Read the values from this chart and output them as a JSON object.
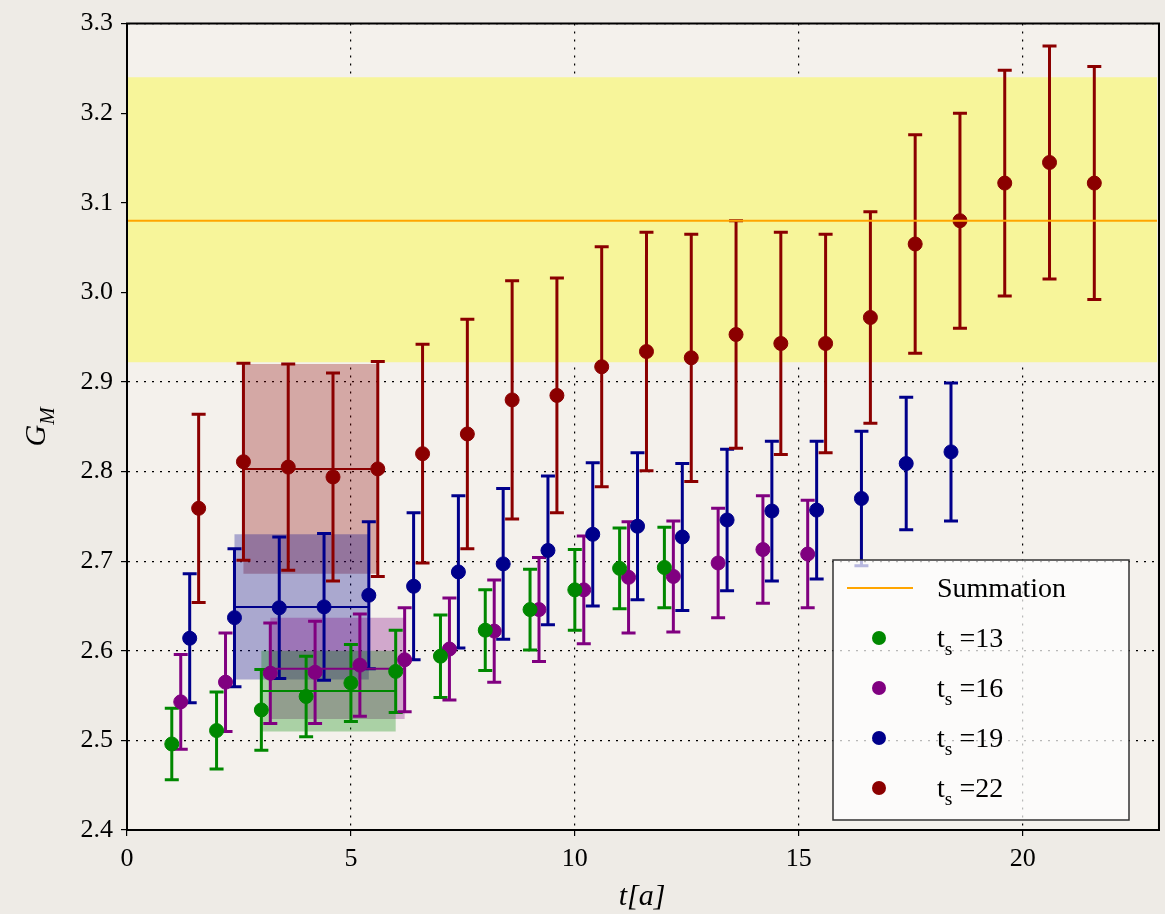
{
  "chart_data": {
    "type": "scatter",
    "xlabel": "t[a]",
    "ylabel": "G$_{M}$",
    "xlim": [
      0,
      23
    ],
    "xticks": [
      0,
      5,
      10,
      15,
      20
    ],
    "ylim": [
      2.4,
      3.3
    ],
    "yticks": [
      {
        "value": 2.4,
        "label": "2.4"
      },
      {
        "value": 2.5,
        "label": "2.5"
      },
      {
        "value": 2.6,
        "label": "2.6"
      },
      {
        "value": 2.7,
        "label": "2.7"
      },
      {
        "value": 2.8,
        "label": "2.8"
      },
      {
        "value": 2.9,
        "label": "2.9"
      },
      {
        "value": 3,
        "label": "3.0"
      },
      {
        "value": 3.1,
        "label": "3.1"
      },
      {
        "value": 3.2,
        "label": "3.2"
      },
      {
        "value": 3.3,
        "label": "3.3"
      }
    ],
    "grid": true,
    "legend": "bottom right",
    "marker": "circle",
    "bands": [
      {
        "axis": "y",
        "from": 2.922,
        "to": 3.24,
        "color": "#f7f59a"
      }
    ],
    "series": [
      {
        "type": "line",
        "name": "Summation",
        "color": "#ffa500",
        "marker": "none",
        "x": [
          0,
          23
        ],
        "values": [
          3.08,
          3.08
        ]
      },
      {
        "name": "t$_{s}$ =13",
        "color": "#008800",
        "x": [
          1,
          2,
          3,
          4,
          5,
          6,
          7,
          8,
          9,
          10,
          11,
          12
        ],
        "values": [
          2.496,
          2.511,
          2.534,
          2.549,
          2.564,
          2.577,
          2.594,
          2.623,
          2.646,
          2.668,
          2.692,
          2.693
        ],
        "errors": [
          0.04,
          0.043,
          0.045,
          0.045,
          0.043,
          0.046,
          0.046,
          0.045,
          0.045,
          0.045,
          0.045,
          0.045
        ]
      },
      {
        "name": "t$_{s}$ =16",
        "color": "#800080",
        "x": [
          1.2,
          2.2,
          3.2,
          4.2,
          5.2,
          6.2,
          7.2,
          8.2,
          9.2,
          10.2,
          11.2,
          12.2,
          13.2,
          14.2,
          15.2
        ],
        "values": [
          2.543,
          2.565,
          2.575,
          2.576,
          2.584,
          2.59,
          2.602,
          2.622,
          2.646,
          2.668,
          2.682,
          2.683,
          2.698,
          2.713,
          2.708
        ],
        "errors": [
          0.053,
          0.055,
          0.056,
          0.057,
          0.057,
          0.058,
          0.057,
          0.057,
          0.058,
          0.06,
          0.062,
          0.062,
          0.061,
          0.06,
          0.06
        ]
      },
      {
        "name": "t$_{s}$ =19",
        "color": "#00008b",
        "x": [
          1.4,
          2.4,
          3.4,
          4.4,
          5.4,
          6.4,
          7.4,
          8.4,
          9.4,
          10.4,
          11.4,
          12.4,
          13.4,
          14.4,
          15.4,
          16.4,
          17.4,
          18.4
        ],
        "values": [
          2.614,
          2.637,
          2.648,
          2.649,
          2.662,
          2.672,
          2.688,
          2.697,
          2.712,
          2.73,
          2.739,
          2.727,
          2.746,
          2.756,
          2.757,
          2.77,
          2.809,
          2.822
        ],
        "errors": [
          0.072,
          0.077,
          0.079,
          0.082,
          0.082,
          0.082,
          0.085,
          0.084,
          0.083,
          0.08,
          0.082,
          0.082,
          0.079,
          0.078,
          0.077,
          0.075,
          0.074,
          0.077
        ]
      },
      {
        "name": "t$_{s}$ =22",
        "color": "#8b0000",
        "x": [
          1.6,
          2.6,
          3.6,
          4.6,
          5.6,
          6.6,
          7.6,
          8.6,
          9.6,
          10.6,
          11.6,
          12.6,
          13.6,
          14.6,
          15.6,
          16.6,
          17.6,
          18.6,
          19.6,
          20.6,
          21.6
        ],
        "values": [
          2.759,
          2.811,
          2.805,
          2.794,
          2.803,
          2.82,
          2.842,
          2.88,
          2.885,
          2.917,
          2.934,
          2.927,
          2.953,
          2.943,
          2.943,
          2.972,
          3.054,
          3.08,
          3.122,
          3.145,
          3.122
        ],
        "errors": [
          0.105,
          0.11,
          0.115,
          0.116,
          0.12,
          0.122,
          0.128,
          0.133,
          0.131,
          0.134,
          0.133,
          0.138,
          0.127,
          0.124,
          0.122,
          0.118,
          0.122,
          0.12,
          0.126,
          0.13,
          0.13
        ]
      },
      {
        "type": "line",
        "color": "#8b0000",
        "marker": "none",
        "x": [
          2.6,
          5.6
        ],
        "values": [
          2.803,
          2.803
        ],
        "lower": [
          2.686,
          2.686
        ],
        "upper": [
          2.92,
          2.92
        ]
      },
      {
        "type": "line",
        "color": "#00008b",
        "marker": "none",
        "x": [
          2.4,
          5.4
        ],
        "values": [
          2.649,
          2.649
        ],
        "lower": [
          2.568,
          2.568
        ],
        "upper": [
          2.73,
          2.73
        ]
      },
      {
        "type": "line",
        "color": "#800080",
        "marker": "none",
        "x": [
          3.2,
          6.2
        ],
        "values": [
          2.58,
          2.58
        ],
        "lower": [
          2.524,
          2.524
        ],
        "upper": [
          2.637,
          2.637
        ]
      },
      {
        "type": "line",
        "color": "#008800",
        "marker": "none",
        "x": [
          3,
          6
        ],
        "values": [
          2.555,
          2.555
        ],
        "lower": [
          2.51,
          2.51
        ],
        "upper": [
          2.6,
          2.6
        ]
      }
    ]
  }
}
